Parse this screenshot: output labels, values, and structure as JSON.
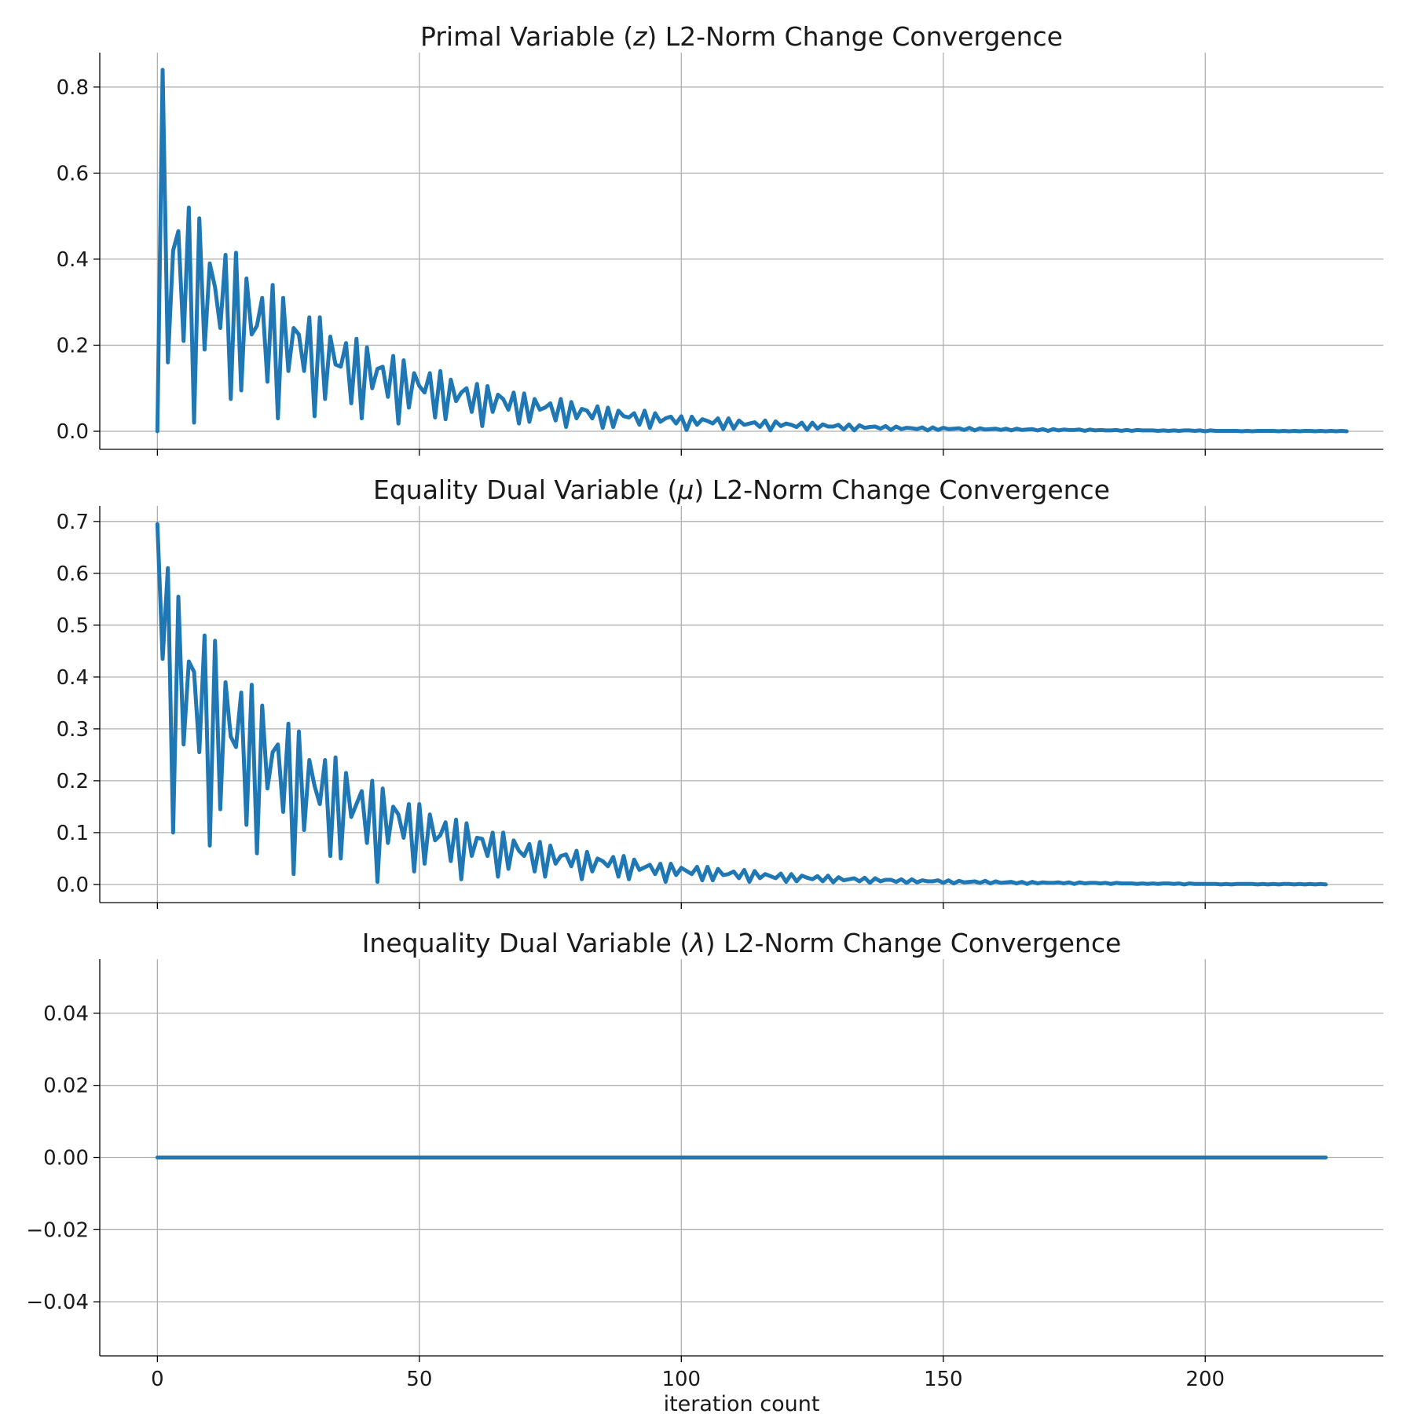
{
  "colors": {
    "series": "#1f77b4",
    "grid": "#b0b0b0",
    "axis": "#000000"
  },
  "chart_data": [
    {
      "type": "line",
      "title": "Primal Variable (z) L2-Norm Change Convergence",
      "title_parts": [
        "Primal Variable (",
        "z",
        ") L2-Norm Change Convergence"
      ],
      "xlabel": "",
      "ylabel": "",
      "xlim": [
        -11,
        234
      ],
      "ylim": [
        -0.042,
        0.88
      ],
      "xticks": [
        0,
        50,
        100,
        150,
        200
      ],
      "yticks": [
        0.0,
        0.2,
        0.4,
        0.6,
        0.8
      ],
      "ytick_labels": [
        "0.0",
        "0.2",
        "0.4",
        "0.6",
        "0.8"
      ],
      "show_xtick_labels": false,
      "grid": true,
      "series": [
        {
          "x_start": 0,
          "x_step": 1,
          "values": [
            0.0,
            0.84,
            0.16,
            0.42,
            0.465,
            0.21,
            0.52,
            0.02,
            0.495,
            0.19,
            0.39,
            0.335,
            0.24,
            0.41,
            0.075,
            0.415,
            0.095,
            0.355,
            0.225,
            0.245,
            0.31,
            0.115,
            0.34,
            0.03,
            0.31,
            0.14,
            0.24,
            0.225,
            0.14,
            0.265,
            0.035,
            0.265,
            0.075,
            0.22,
            0.155,
            0.15,
            0.205,
            0.065,
            0.215,
            0.03,
            0.195,
            0.1,
            0.145,
            0.15,
            0.08,
            0.175,
            0.018,
            0.165,
            0.055,
            0.135,
            0.105,
            0.09,
            0.135,
            0.032,
            0.14,
            0.028,
            0.12,
            0.07,
            0.09,
            0.1,
            0.045,
            0.11,
            0.012,
            0.105,
            0.045,
            0.085,
            0.075,
            0.05,
            0.09,
            0.018,
            0.088,
            0.022,
            0.075,
            0.05,
            0.055,
            0.065,
            0.025,
            0.075,
            0.01,
            0.068,
            0.03,
            0.052,
            0.048,
            0.03,
            0.058,
            0.008,
            0.055,
            0.01,
            0.048,
            0.035,
            0.032,
            0.042,
            0.015,
            0.048,
            0.008,
            0.042,
            0.022,
            0.03,
            0.034,
            0.018,
            0.035,
            0.003,
            0.034,
            0.015,
            0.028,
            0.024,
            0.018,
            0.03,
            0.005,
            0.03,
            0.006,
            0.025,
            0.015,
            0.018,
            0.021,
            0.01,
            0.025,
            0.002,
            0.023,
            0.012,
            0.018,
            0.015,
            0.01,
            0.02,
            0.003,
            0.02,
            0.006,
            0.016,
            0.011,
            0.011,
            0.015,
            0.004,
            0.016,
            0.002,
            0.014,
            0.008,
            0.01,
            0.011,
            0.006,
            0.012,
            0.003,
            0.011,
            0.005,
            0.008,
            0.007,
            0.005,
            0.009,
            0.002,
            0.009,
            0.003,
            0.008,
            0.005,
            0.006,
            0.007,
            0.003,
            0.008,
            0.002,
            0.007,
            0.004,
            0.005,
            0.006,
            0.003,
            0.006,
            0.002,
            0.006,
            0.003,
            0.004,
            0.005,
            0.002,
            0.005,
            0.001,
            0.005,
            0.002,
            0.004,
            0.003,
            0.003,
            0.004,
            0.001,
            0.004,
            0.002,
            0.003,
            0.002,
            0.002,
            0.003,
            0.001,
            0.003,
            0.001,
            0.003,
            0.002,
            0.002,
            0.002,
            0.001,
            0.002,
            0.001,
            0.002,
            0.001,
            0.002,
            0.002,
            0.001,
            0.002,
            0.0,
            0.002,
            0.001,
            0.001,
            0.001,
            0.001,
            0.001,
            0.0,
            0.001,
            0.0,
            0.001,
            0.001,
            0.001,
            0.001,
            0.0,
            0.001,
            0.0,
            0.001,
            0.0,
            0.001,
            0.001,
            0.0,
            0.001,
            0.0,
            0.001,
            0.0,
            0.001,
            0.0
          ]
        }
      ]
    },
    {
      "type": "line",
      "title": "Equality Dual Variable (μ) L2-Norm Change Convergence",
      "title_parts": [
        "Equality Dual Variable (",
        "μ",
        ") L2-Norm Change Convergence"
      ],
      "xlabel": "",
      "ylabel": "",
      "xlim": [
        -11,
        234
      ],
      "ylim": [
        -0.035,
        0.73
      ],
      "xticks": [
        0,
        50,
        100,
        150,
        200
      ],
      "yticks": [
        0.0,
        0.1,
        0.2,
        0.3,
        0.4,
        0.5,
        0.6,
        0.7
      ],
      "ytick_labels": [
        "0.0",
        "0.1",
        "0.2",
        "0.3",
        "0.4",
        "0.5",
        "0.6",
        "0.7"
      ],
      "show_xtick_labels": false,
      "grid": true,
      "series": [
        {
          "x_start": 0,
          "x_step": 1,
          "values": [
            0.695,
            0.435,
            0.61,
            0.1,
            0.555,
            0.27,
            0.43,
            0.41,
            0.255,
            0.48,
            0.075,
            0.47,
            0.145,
            0.39,
            0.285,
            0.265,
            0.37,
            0.115,
            0.385,
            0.06,
            0.345,
            0.185,
            0.255,
            0.27,
            0.14,
            0.31,
            0.02,
            0.295,
            0.105,
            0.24,
            0.19,
            0.155,
            0.24,
            0.055,
            0.245,
            0.05,
            0.215,
            0.13,
            0.155,
            0.18,
            0.08,
            0.2,
            0.005,
            0.185,
            0.08,
            0.15,
            0.135,
            0.09,
            0.155,
            0.025,
            0.155,
            0.04,
            0.135,
            0.085,
            0.095,
            0.12,
            0.045,
            0.125,
            0.01,
            0.118,
            0.055,
            0.09,
            0.088,
            0.055,
            0.1,
            0.015,
            0.1,
            0.03,
            0.085,
            0.065,
            0.055,
            0.078,
            0.025,
            0.082,
            0.015,
            0.075,
            0.04,
            0.055,
            0.058,
            0.035,
            0.065,
            0.01,
            0.063,
            0.025,
            0.05,
            0.045,
            0.035,
            0.053,
            0.015,
            0.055,
            0.01,
            0.048,
            0.028,
            0.033,
            0.038,
            0.02,
            0.04,
            0.005,
            0.04,
            0.018,
            0.032,
            0.026,
            0.02,
            0.034,
            0.008,
            0.034,
            0.008,
            0.03,
            0.018,
            0.02,
            0.025,
            0.012,
            0.028,
            0.005,
            0.026,
            0.012,
            0.02,
            0.016,
            0.012,
            0.021,
            0.005,
            0.02,
            0.006,
            0.017,
            0.013,
            0.01,
            0.016,
            0.006,
            0.017,
            0.004,
            0.014,
            0.008,
            0.01,
            0.012,
            0.006,
            0.013,
            0.003,
            0.012,
            0.006,
            0.009,
            0.009,
            0.005,
            0.01,
            0.003,
            0.01,
            0.004,
            0.008,
            0.006,
            0.006,
            0.008,
            0.003,
            0.008,
            0.002,
            0.007,
            0.004,
            0.005,
            0.006,
            0.003,
            0.007,
            0.002,
            0.006,
            0.003,
            0.004,
            0.005,
            0.002,
            0.005,
            0.001,
            0.005,
            0.002,
            0.004,
            0.003,
            0.003,
            0.004,
            0.002,
            0.004,
            0.001,
            0.004,
            0.002,
            0.003,
            0.003,
            0.002,
            0.003,
            0.001,
            0.003,
            0.002,
            0.002,
            0.002,
            0.001,
            0.002,
            0.001,
            0.002,
            0.001,
            0.002,
            0.002,
            0.001,
            0.002,
            0.0,
            0.002,
            0.001,
            0.001,
            0.001,
            0.001,
            0.001,
            0.0,
            0.001,
            0.0,
            0.001,
            0.001,
            0.001,
            0.001,
            0.0,
            0.001,
            0.0,
            0.001,
            0.0,
            0.001,
            0.001,
            0.0,
            0.001,
            0.0,
            0.001,
            0.0,
            0.001,
            0.0
          ]
        }
      ]
    },
    {
      "type": "line",
      "title": "Inequality Dual Variable (λ) L2-Norm Change Convergence",
      "title_parts": [
        "Inequality Dual Variable (",
        "λ",
        ") L2-Norm Change Convergence"
      ],
      "xlabel": "iteration count",
      "ylabel": "",
      "xlim": [
        -11,
        234
      ],
      "ylim": [
        -0.055,
        0.055
      ],
      "xticks": [
        0,
        50,
        100,
        150,
        200
      ],
      "xtick_labels": [
        "0",
        "50",
        "100",
        "150",
        "200"
      ],
      "yticks": [
        -0.04,
        -0.02,
        0.0,
        0.02,
        0.04
      ],
      "ytick_labels": [
        "−0.04",
        "−0.02",
        "0.00",
        "0.02",
        "0.04"
      ],
      "show_xtick_labels": true,
      "grid": true,
      "series": [
        {
          "x": [
            0,
            223
          ],
          "values": [
            0.0,
            0.0
          ]
        }
      ]
    }
  ]
}
